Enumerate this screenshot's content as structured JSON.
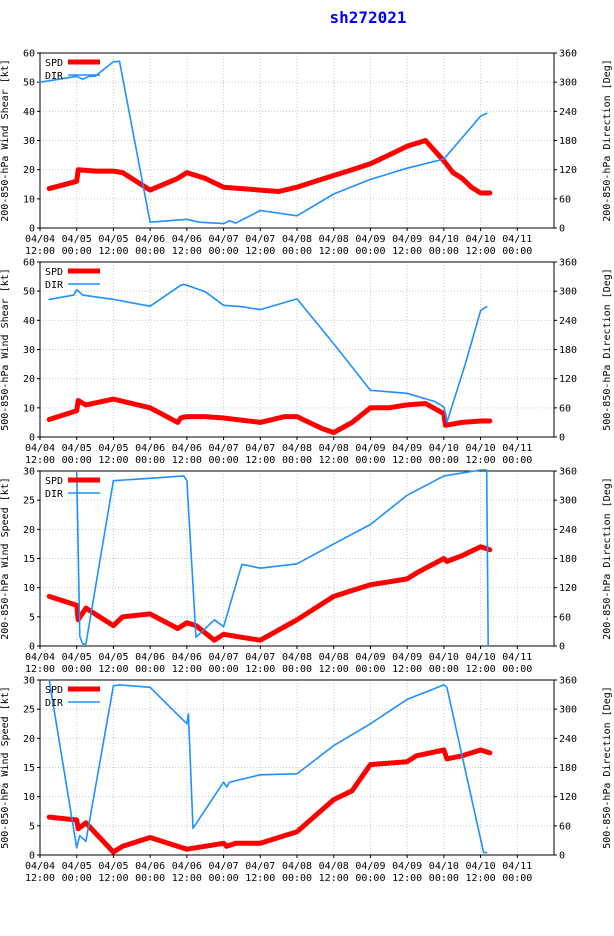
{
  "title": "sh272021",
  "colors": {
    "spd": "#ff0000",
    "dir": "#1e90ff",
    "grid": "#c8c8c8",
    "title": "#0000ff"
  },
  "chart_data": [
    {
      "type": "line",
      "ylabel": "200-850-hPa Wind Shear [kt]",
      "y2label": "200-850-hPa Direction [Deg]",
      "ylim": [
        0,
        60
      ],
      "yticks": [
        0,
        10,
        20,
        30,
        40,
        50,
        60
      ],
      "y2lim": [
        0,
        360
      ],
      "y2ticks": [
        0,
        60,
        120,
        180,
        240,
        300,
        360
      ],
      "xlim": [
        0,
        168
      ],
      "x_ticks": [
        {
          "x": 0,
          "date": "04/04",
          "time": "12:00"
        },
        {
          "x": 12,
          "date": "04/05",
          "time": "00:00"
        },
        {
          "x": 24,
          "date": "04/05",
          "time": "12:00"
        },
        {
          "x": 36,
          "date": "04/06",
          "time": "00:00"
        },
        {
          "x": 48,
          "date": "04/06",
          "time": "12:00"
        },
        {
          "x": 60,
          "date": "04/07",
          "time": "00:00"
        },
        {
          "x": 72,
          "date": "04/07",
          "time": "12:00"
        },
        {
          "x": 84,
          "date": "04/08",
          "time": "00:00"
        },
        {
          "x": 96,
          "date": "04/08",
          "time": "12:00"
        },
        {
          "x": 108,
          "date": "04/09",
          "time": "00:00"
        },
        {
          "x": 120,
          "date": "04/09",
          "time": "12:00"
        },
        {
          "x": 132,
          "date": "04/10",
          "time": "00:00"
        },
        {
          "x": 144,
          "date": "04/10",
          "time": "12:00"
        },
        {
          "x": 156,
          "date": "04/11",
          "time": "00:00"
        }
      ],
      "legend": [
        "SPD",
        "DIR"
      ],
      "series": [
        {
          "name": "SPD",
          "axis": "left",
          "x": [
            3,
            12,
            12.5,
            18,
            24,
            27,
            36,
            45,
            48,
            54,
            60,
            66,
            72,
            78,
            84,
            90,
            96,
            102,
            108,
            114,
            120,
            126,
            132,
            135,
            138,
            141,
            144,
            147
          ],
          "y": [
            13.5,
            16,
            20,
            19.5,
            19.5,
            19,
            13,
            17,
            19,
            17,
            14,
            13.5,
            13,
            12.5,
            14,
            16,
            18,
            20,
            22,
            25,
            28,
            30,
            23,
            19,
            17,
            14,
            12,
            12
          ]
        },
        {
          "name": "DIR",
          "axis": "right",
          "x": [
            0,
            6,
            12,
            14,
            16,
            18,
            24,
            26,
            36,
            48,
            52,
            60,
            62,
            64,
            72,
            84,
            96,
            108,
            120,
            132,
            144,
            146
          ],
          "y": [
            300,
            306,
            312,
            306,
            312,
            312,
            342,
            343,
            12,
            18,
            12,
            9,
            15,
            10,
            36,
            25,
            70,
            100,
            123,
            142,
            230,
            236
          ]
        }
      ]
    },
    {
      "type": "line",
      "ylabel": "500-850-hPa Wind Shear [kt]",
      "y2label": "500-850-hPa Direction [Deg]",
      "ylim": [
        0,
        60
      ],
      "yticks": [
        0,
        10,
        20,
        30,
        40,
        50,
        60
      ],
      "y2lim": [
        0,
        360
      ],
      "y2ticks": [
        0,
        60,
        120,
        180,
        240,
        300,
        360
      ],
      "xlim": [
        0,
        168
      ],
      "x_ticks": [
        {
          "x": 0,
          "date": "04/04",
          "time": "12:00"
        },
        {
          "x": 12,
          "date": "04/05",
          "time": "00:00"
        },
        {
          "x": 24,
          "date": "04/05",
          "time": "12:00"
        },
        {
          "x": 36,
          "date": "04/06",
          "time": "00:00"
        },
        {
          "x": 48,
          "date": "04/06",
          "time": "12:00"
        },
        {
          "x": 60,
          "date": "04/07",
          "time": "00:00"
        },
        {
          "x": 72,
          "date": "04/07",
          "time": "12:00"
        },
        {
          "x": 84,
          "date": "04/08",
          "time": "00:00"
        },
        {
          "x": 96,
          "date": "04/08",
          "time": "12:00"
        },
        {
          "x": 108,
          "date": "04/09",
          "time": "00:00"
        },
        {
          "x": 120,
          "date": "04/09",
          "time": "12:00"
        },
        {
          "x": 132,
          "date": "04/10",
          "time": "00:00"
        },
        {
          "x": 144,
          "date": "04/10",
          "time": "12:00"
        },
        {
          "x": 156,
          "date": "04/11",
          "time": "00:00"
        }
      ],
      "legend": [
        "SPD",
        "DIR"
      ],
      "series": [
        {
          "name": "SPD",
          "axis": "left",
          "x": [
            3,
            12,
            12.5,
            15,
            24,
            36,
            45,
            46,
            48,
            54,
            60,
            72,
            80,
            84,
            92,
            96,
            102,
            108,
            114,
            120,
            126,
            132,
            132.5,
            138,
            144,
            147
          ],
          "y": [
            6,
            9,
            12.5,
            11,
            13,
            10,
            5,
            6.5,
            7,
            7,
            6.5,
            5,
            7,
            7,
            3,
            1.5,
            5,
            10,
            10,
            11,
            11.5,
            8,
            4,
            5,
            5.5,
            5.5
          ]
        },
        {
          "name": "DIR",
          "axis": "right",
          "x": [
            3,
            11,
            12,
            14,
            24,
            36,
            46,
            47,
            48,
            54,
            60,
            66,
            72,
            84,
            96,
            108,
            120,
            129,
            132,
            133,
            139,
            144,
            146
          ],
          "y": [
            283,
            292,
            303,
            292,
            283,
            269,
            312,
            314,
            312,
            299,
            271,
            268,
            262,
            284,
            192,
            96,
            90,
            73,
            62,
            30,
            150,
            260,
            268
          ]
        }
      ]
    },
    {
      "type": "line",
      "ylabel": "200-850-hPa Wind Speed [kt]",
      "y2label": "200-850-hPa Direction [Deg]",
      "ylim": [
        0,
        30
      ],
      "yticks": [
        0,
        5,
        10,
        15,
        20,
        25,
        30
      ],
      "y2lim": [
        0,
        360
      ],
      "y2ticks": [
        0,
        60,
        120,
        180,
        240,
        300,
        360
      ],
      "xlim": [
        0,
        168
      ],
      "x_ticks": [
        {
          "x": 0,
          "date": "04/04",
          "time": "12:00"
        },
        {
          "x": 12,
          "date": "04/05",
          "time": "00:00"
        },
        {
          "x": 24,
          "date": "04/05",
          "time": "12:00"
        },
        {
          "x": 36,
          "date": "04/06",
          "time": "00:00"
        },
        {
          "x": 48,
          "date": "04/06",
          "time": "12:00"
        },
        {
          "x": 60,
          "date": "04/07",
          "time": "00:00"
        },
        {
          "x": 72,
          "date": "04/07",
          "time": "12:00"
        },
        {
          "x": 84,
          "date": "04/08",
          "time": "00:00"
        },
        {
          "x": 96,
          "date": "04/08",
          "time": "12:00"
        },
        {
          "x": 108,
          "date": "04/09",
          "time": "00:00"
        },
        {
          "x": 120,
          "date": "04/09",
          "time": "12:00"
        },
        {
          "x": 132,
          "date": "04/10",
          "time": "00:00"
        },
        {
          "x": 144,
          "date": "04/10",
          "time": "12:00"
        },
        {
          "x": 156,
          "date": "04/11",
          "time": "00:00"
        }
      ],
      "legend": [
        "SPD",
        "DIR"
      ],
      "series": [
        {
          "name": "SPD",
          "axis": "left",
          "x": [
            3,
            12,
            12.5,
            15,
            24,
            27,
            36,
            45,
            48,
            51,
            57,
            60,
            66,
            72,
            84,
            96,
            108,
            120,
            123,
            132,
            133,
            138,
            144,
            147
          ],
          "y": [
            8.5,
            7,
            4.5,
            6.5,
            3.5,
            5,
            5.5,
            3,
            4,
            3.5,
            1,
            2,
            1.5,
            1,
            4.5,
            8.5,
            10.5,
            11.5,
            12.5,
            15,
            14.5,
            15.5,
            17,
            16.5
          ]
        },
        {
          "name": "DIR",
          "axis": "right",
          "x": [
            12,
            13,
            14,
            15,
            24,
            36,
            47,
            48,
            51,
            57,
            60,
            66,
            72,
            84,
            96,
            108,
            120,
            132,
            144,
            146,
            146.5
          ],
          "y": [
            359,
            20,
            4,
            4,
            340,
            345,
            350,
            340,
            18,
            54,
            40,
            168,
            160,
            169,
            210,
            250,
            310,
            350,
            362,
            362,
            0
          ]
        }
      ]
    },
    {
      "type": "line",
      "ylabel": "500-850-hPa Wind Speed [kt]",
      "y2label": "500-850-hPa Direction [Deg]",
      "ylim": [
        0,
        30
      ],
      "yticks": [
        0,
        5,
        10,
        15,
        20,
        25,
        30
      ],
      "y2lim": [
        0,
        360
      ],
      "y2ticks": [
        0,
        60,
        120,
        180,
        240,
        300,
        360
      ],
      "xlim": [
        0,
        168
      ],
      "x_ticks": [
        {
          "x": 0,
          "date": "04/04",
          "time": "12:00"
        },
        {
          "x": 12,
          "date": "04/05",
          "time": "00:00"
        },
        {
          "x": 24,
          "date": "04/05",
          "time": "12:00"
        },
        {
          "x": 36,
          "date": "04/06",
          "time": "00:00"
        },
        {
          "x": 48,
          "date": "04/06",
          "time": "12:00"
        },
        {
          "x": 60,
          "date": "04/07",
          "time": "00:00"
        },
        {
          "x": 72,
          "date": "04/07",
          "time": "12:00"
        },
        {
          "x": 84,
          "date": "04/08",
          "time": "00:00"
        },
        {
          "x": 96,
          "date": "04/08",
          "time": "12:00"
        },
        {
          "x": 108,
          "date": "04/09",
          "time": "00:00"
        },
        {
          "x": 120,
          "date": "04/09",
          "time": "12:00"
        },
        {
          "x": 132,
          "date": "04/10",
          "time": "00:00"
        },
        {
          "x": 144,
          "date": "04/10",
          "time": "12:00"
        },
        {
          "x": 156,
          "date": "04/11",
          "time": "00:00"
        }
      ],
      "legend": [
        "SPD",
        "DIR"
      ],
      "series": [
        {
          "name": "SPD",
          "axis": "left",
          "x": [
            3,
            12,
            12.5,
            15,
            24,
            27,
            36,
            48,
            60,
            61,
            64,
            72,
            84,
            96,
            102,
            108,
            120,
            123,
            132,
            133,
            138,
            144,
            147
          ],
          "y": [
            6.5,
            6,
            4.5,
            5.5,
            0.5,
            1.5,
            3,
            1,
            2,
            1.5,
            2,
            2,
            4,
            9.5,
            11,
            15.5,
            16,
            17,
            18,
            16.5,
            17,
            18,
            17.5
          ]
        },
        {
          "name": "DIR",
          "axis": "right",
          "x": [
            3,
            12,
            13,
            15,
            24,
            26,
            36,
            48,
            48.5,
            50,
            60,
            61,
            62,
            72,
            84,
            96,
            108,
            120,
            132,
            133,
            145,
            146
          ],
          "y": [
            360,
            15,
            40,
            28,
            348,
            350,
            345,
            270,
            290,
            55,
            150,
            140,
            150,
            165,
            167,
            225,
            270,
            320,
            350,
            345,
            5,
            5
          ]
        }
      ]
    }
  ]
}
